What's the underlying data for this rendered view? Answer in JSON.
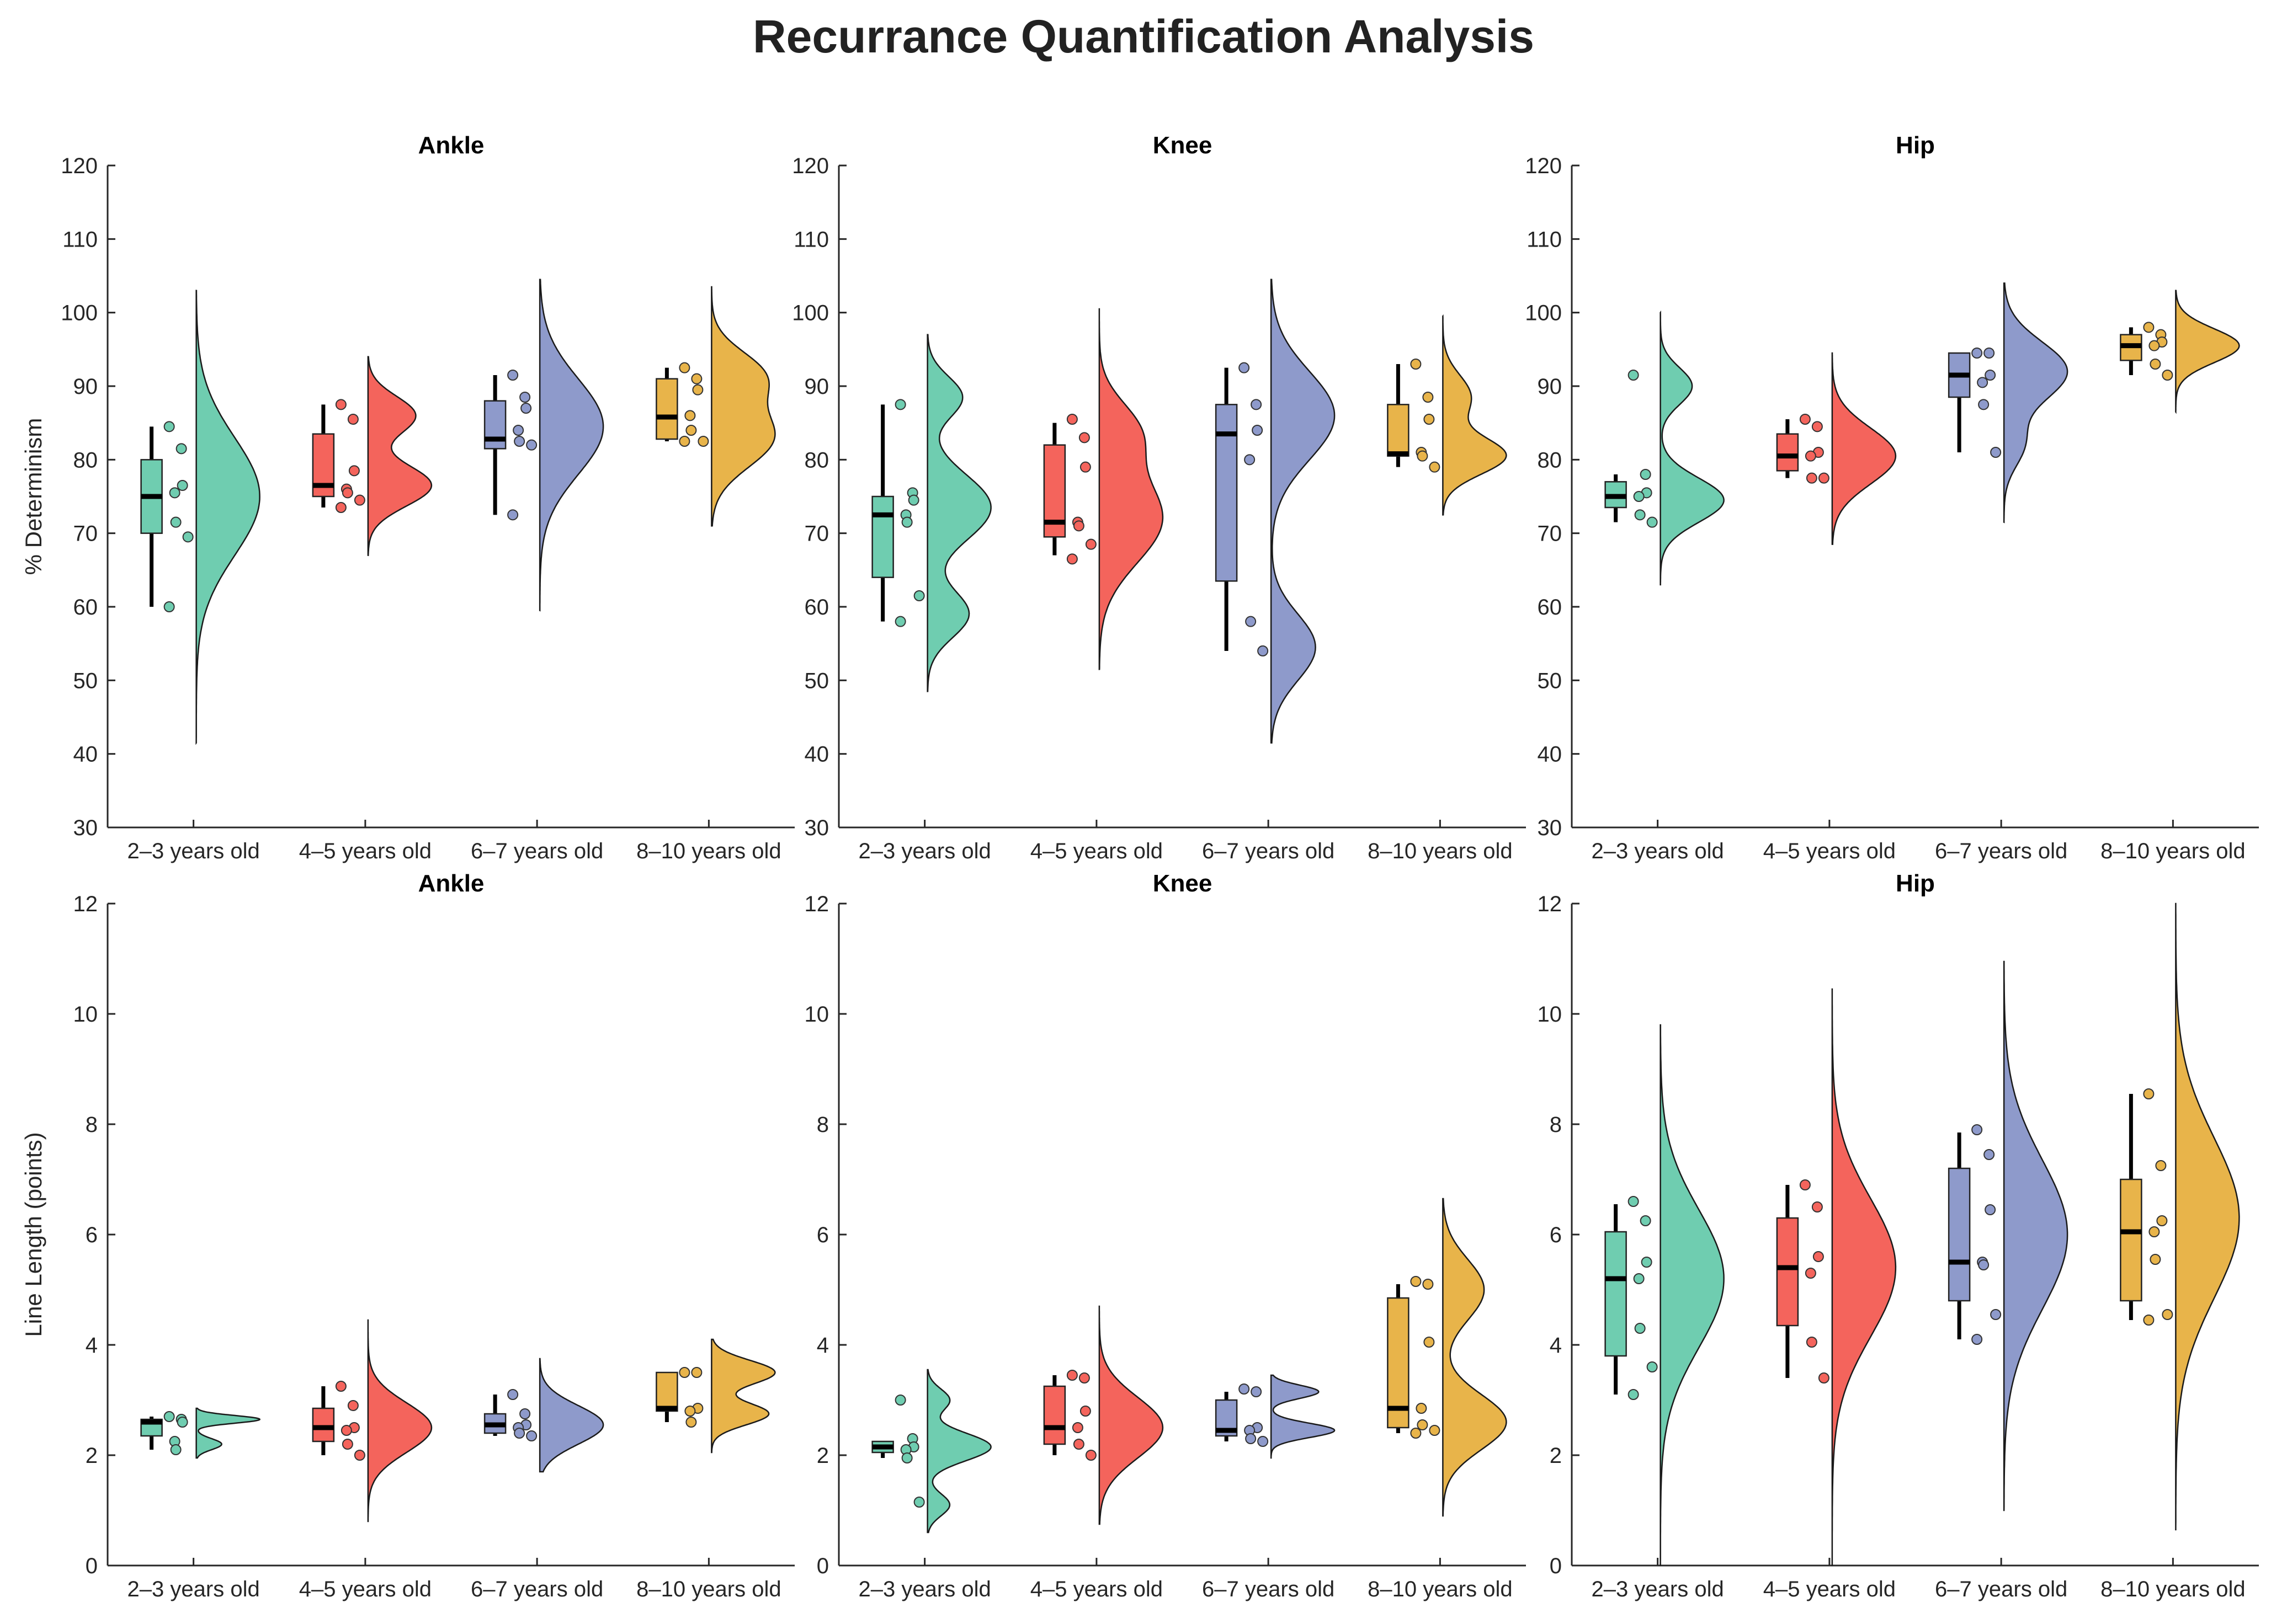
{
  "title": "Recurrance Quantification Analysis",
  "colors": {
    "2-3": "#6fcdb0",
    "4-5": "#f4645c",
    "6-7": "#8e9acb",
    "8-10": "#e8b44a",
    "axis": "#262626"
  },
  "chart_data": [
    {
      "type": "raincloud",
      "title": "Ankle",
      "ylabel": "% Determinism",
      "ylim": [
        30,
        120
      ],
      "yticks": [
        30,
        40,
        50,
        60,
        70,
        80,
        90,
        100,
        110,
        120
      ],
      "categories": [
        "2–3 years old",
        "4–5 years old",
        "6–7 years old",
        "8–10 years old"
      ],
      "box": [
        {
          "whisker_low": 60,
          "q1": 70,
          "median": 75,
          "q3": 80,
          "whisker_high": 84.5
        },
        {
          "whisker_low": 73.5,
          "q1": 75,
          "median": 76.5,
          "q3": 83.5,
          "whisker_high": 87.5
        },
        {
          "whisker_low": 72.5,
          "q1": 81.5,
          "median": 82.8,
          "q3": 88,
          "whisker_high": 91.5
        },
        {
          "whisker_low": 82.5,
          "q1": 82.8,
          "median": 85.8,
          "q3": 91,
          "whisker_high": 92.5
        }
      ],
      "points": [
        [
          84.5,
          81.5,
          76.5,
          75.5,
          71.5,
          69.5,
          60
        ],
        [
          87.5,
          85.5,
          78.5,
          76,
          75.5,
          74.5,
          73.5
        ],
        [
          91.5,
          88.5,
          87,
          84,
          82.5,
          82,
          72.5
        ],
        [
          92.5,
          91,
          89.5,
          86,
          84,
          82.5,
          82.5
        ]
      ],
      "density": [
        {
          "min": 41.5,
          "max": 103,
          "peaks": [
            {
              "mu": 75,
              "sd": 8,
              "w": 1
            }
          ]
        },
        {
          "min": 67,
          "max": 94,
          "peaks": [
            {
              "mu": 76.5,
              "sd": 2.8,
              "w": 1
            },
            {
              "mu": 86,
              "sd": 2.6,
              "w": 0.75
            }
          ]
        },
        {
          "min": 59.5,
          "max": 104.5,
          "peaks": [
            {
              "mu": 84.5,
              "sd": 6.5,
              "w": 1
            }
          ]
        },
        {
          "min": 71,
          "max": 103.5,
          "peaks": [
            {
              "mu": 83,
              "sd": 4,
              "w": 1
            },
            {
              "mu": 91.5,
              "sd": 3.3,
              "w": 0.8
            }
          ]
        }
      ]
    },
    {
      "type": "raincloud",
      "title": "Knee",
      "ylabel": "",
      "ylim": [
        30,
        120
      ],
      "yticks": [
        30,
        40,
        50,
        60,
        70,
        80,
        90,
        100,
        110,
        120
      ],
      "categories": [
        "2–3 years old",
        "4–5 years old",
        "6–7 years old",
        "8–10 years old"
      ],
      "box": [
        {
          "whisker_low": 58,
          "q1": 64,
          "median": 72.5,
          "q3": 75,
          "whisker_high": 87.5
        },
        {
          "whisker_low": 67,
          "q1": 69.5,
          "median": 71.5,
          "q3": 82,
          "whisker_high": 85
        },
        {
          "whisker_low": 54,
          "q1": 63.5,
          "median": 83.5,
          "q3": 87.5,
          "whisker_high": 92.5
        },
        {
          "whisker_low": 79,
          "q1": 80.5,
          "median": 80.8,
          "q3": 87.5,
          "whisker_high": 93
        }
      ],
      "points": [
        [
          87.5,
          75.5,
          74.5,
          72.5,
          71.5,
          61.5,
          58
        ],
        [
          85.5,
          83,
          79,
          71.5,
          71,
          68.5,
          66.5
        ],
        [
          92.5,
          87.5,
          84,
          80,
          58,
          54
        ],
        [
          93,
          88.5,
          85.5,
          81,
          80.5,
          79
        ]
      ],
      "density": [
        {
          "min": 48.5,
          "max": 97,
          "peaks": [
            {
              "mu": 59,
              "sd": 3.2,
              "w": 0.65
            },
            {
              "mu": 73.5,
              "sd": 4.5,
              "w": 1
            },
            {
              "mu": 88.5,
              "sd": 2.8,
              "w": 0.55
            }
          ]
        },
        {
          "min": 51.5,
          "max": 100.5,
          "peaks": [
            {
              "mu": 72,
              "sd": 6,
              "w": 1
            },
            {
              "mu": 84,
              "sd": 4,
              "w": 0.55
            }
          ]
        },
        {
          "min": 41.5,
          "max": 104.5,
          "peaks": [
            {
              "mu": 54.5,
              "sd": 4.5,
              "w": 0.7
            },
            {
              "mu": 86,
              "sd": 6,
              "w": 1
            }
          ]
        },
        {
          "min": 72.5,
          "max": 99.5,
          "peaks": [
            {
              "mu": 80.5,
              "sd": 2.5,
              "w": 1
            },
            {
              "mu": 88.5,
              "sd": 3,
              "w": 0.45
            }
          ]
        }
      ]
    },
    {
      "type": "raincloud",
      "title": "Hip",
      "ylabel": "",
      "ylim": [
        30,
        120
      ],
      "yticks": [
        30,
        40,
        50,
        60,
        70,
        80,
        90,
        100,
        110,
        120
      ],
      "categories": [
        "2–3 years old",
        "4–5 years old",
        "6–7 years old",
        "8–10 years old"
      ],
      "box": [
        {
          "whisker_low": 71.5,
          "q1": 73.5,
          "median": 75,
          "q3": 77,
          "whisker_high": 78
        },
        {
          "whisker_low": 77.5,
          "q1": 78.5,
          "median": 80.5,
          "q3": 83.5,
          "whisker_high": 85.5
        },
        {
          "whisker_low": 81,
          "q1": 88.5,
          "median": 91.5,
          "q3": 94.5,
          "whisker_high": 94.5
        },
        {
          "whisker_low": 91.5,
          "q1": 93.5,
          "median": 95.5,
          "q3": 97,
          "whisker_high": 98
        }
      ],
      "points": [
        [
          91.5,
          78,
          75.5,
          75,
          72.5,
          71.5
        ],
        [
          85.5,
          84.5,
          81,
          80.5,
          77.5,
          77.5
        ],
        [
          94.5,
          94.5,
          91.5,
          90.5,
          87.5,
          81
        ],
        [
          98,
          97,
          96,
          95.5,
          93,
          91.5
        ]
      ],
      "density": [
        {
          "min": 63,
          "max": 100,
          "peaks": [
            {
              "mu": 74.5,
              "sd": 3,
              "w": 1
            },
            {
              "mu": 90,
              "sd": 2.5,
              "w": 0.5
            }
          ]
        },
        {
          "min": 68.5,
          "max": 94.5,
          "peaks": [
            {
              "mu": 80.5,
              "sd": 3.8,
              "w": 1
            }
          ]
        },
        {
          "min": 71.5,
          "max": 104,
          "peaks": [
            {
              "mu": 92,
              "sd": 4,
              "w": 1
            },
            {
              "mu": 82,
              "sd": 3,
              "w": 0.3
            }
          ]
        },
        {
          "min": 86.5,
          "max": 103,
          "peaks": [
            {
              "mu": 95.5,
              "sd": 2.3,
              "w": 1
            }
          ]
        }
      ]
    },
    {
      "type": "raincloud",
      "title": "Ankle",
      "ylabel": "Line Length (points)",
      "ylim": [
        0,
        12
      ],
      "yticks": [
        0,
        2,
        4,
        6,
        8,
        10,
        12
      ],
      "categories": [
        "2–3 years old",
        "4–5 years old",
        "6–7 years old",
        "8–10 years old"
      ],
      "box": [
        {
          "whisker_low": 2.1,
          "q1": 2.35,
          "median": 2.6,
          "q3": 2.65,
          "whisker_high": 2.7
        },
        {
          "whisker_low": 2.0,
          "q1": 2.25,
          "median": 2.5,
          "q3": 2.85,
          "whisker_high": 3.25
        },
        {
          "whisker_low": 2.35,
          "q1": 2.4,
          "median": 2.55,
          "q3": 2.75,
          "whisker_high": 3.1
        },
        {
          "whisker_low": 2.6,
          "q1": 2.8,
          "median": 2.85,
          "q3": 3.5,
          "whisker_high": 3.5
        }
      ],
      "points": [
        [
          2.7,
          2.65,
          2.6,
          2.25,
          2.1
        ],
        [
          3.25,
          2.9,
          2.5,
          2.45,
          2.2,
          2.0
        ],
        [
          3.1,
          2.75,
          2.55,
          2.5,
          2.4,
          2.35
        ],
        [
          3.5,
          3.5,
          2.85,
          2.8,
          2.6
        ]
      ],
      "density": [
        {
          "min": 1.95,
          "max": 2.85,
          "peaks": [
            {
              "mu": 2.65,
              "sd": 0.07,
              "w": 1
            },
            {
              "mu": 2.2,
              "sd": 0.1,
              "w": 0.4
            }
          ]
        },
        {
          "min": 0.8,
          "max": 4.45,
          "peaks": [
            {
              "mu": 2.5,
              "sd": 0.45,
              "w": 1
            }
          ]
        },
        {
          "min": 1.7,
          "max": 3.75,
          "peaks": [
            {
              "mu": 2.55,
              "sd": 0.35,
              "w": 1
            }
          ]
        },
        {
          "min": 2.05,
          "max": 4.1,
          "peaks": [
            {
              "mu": 2.75,
              "sd": 0.2,
              "w": 0.9
            },
            {
              "mu": 3.5,
              "sd": 0.22,
              "w": 1
            }
          ]
        }
      ]
    },
    {
      "type": "raincloud",
      "title": "Knee",
      "ylabel": "",
      "ylim": [
        0,
        12
      ],
      "yticks": [
        0,
        2,
        4,
        6,
        8,
        10,
        12
      ],
      "categories": [
        "2–3 years old",
        "4–5 years old",
        "6–7 years old",
        "8–10 years old"
      ],
      "box": [
        {
          "whisker_low": 1.95,
          "q1": 2.05,
          "median": 2.15,
          "q3": 2.25,
          "whisker_high": 2.25
        },
        {
          "whisker_low": 2.0,
          "q1": 2.2,
          "median": 2.5,
          "q3": 3.25,
          "whisker_high": 3.45
        },
        {
          "whisker_low": 2.25,
          "q1": 2.35,
          "median": 2.45,
          "q3": 3.0,
          "whisker_high": 3.15
        },
        {
          "whisker_low": 2.4,
          "q1": 2.5,
          "median": 2.85,
          "q3": 4.85,
          "whisker_high": 5.1
        }
      ],
      "points": [
        [
          3.0,
          2.3,
          2.15,
          2.1,
          1.95,
          1.15
        ],
        [
          3.45,
          3.4,
          2.8,
          2.5,
          2.2,
          2.0
        ],
        [
          3.2,
          3.15,
          2.5,
          2.45,
          2.3,
          2.25
        ],
        [
          5.15,
          5.1,
          4.05,
          2.85,
          2.55,
          2.45,
          2.4
        ]
      ],
      "density": [
        {
          "min": 0.6,
          "max": 3.55,
          "peaks": [
            {
              "mu": 2.15,
              "sd": 0.25,
              "w": 1
            },
            {
              "mu": 1.1,
              "sd": 0.2,
              "w": 0.35
            },
            {
              "mu": 3.0,
              "sd": 0.2,
              "w": 0.35
            }
          ]
        },
        {
          "min": 0.75,
          "max": 4.7,
          "peaks": [
            {
              "mu": 2.5,
              "sd": 0.55,
              "w": 1
            }
          ]
        },
        {
          "min": 1.95,
          "max": 3.45,
          "peaks": [
            {
              "mu": 2.45,
              "sd": 0.13,
              "w": 1
            },
            {
              "mu": 3.15,
              "sd": 0.12,
              "w": 0.75
            }
          ]
        },
        {
          "min": 0.9,
          "max": 6.65,
          "peaks": [
            {
              "mu": 2.6,
              "sd": 0.5,
              "w": 1
            },
            {
              "mu": 5.0,
              "sd": 0.55,
              "w": 0.65
            }
          ]
        }
      ]
    },
    {
      "type": "raincloud",
      "title": "Hip",
      "ylabel": "",
      "ylim": [
        0,
        12
      ],
      "yticks": [
        0,
        2,
        4,
        6,
        8,
        10,
        12
      ],
      "categories": [
        "2–3 years old",
        "4–5 years old",
        "6–7 years old",
        "8–10 years old"
      ],
      "box": [
        {
          "whisker_low": 3.1,
          "q1": 3.8,
          "median": 5.2,
          "q3": 6.05,
          "whisker_high": 6.55
        },
        {
          "whisker_low": 3.4,
          "q1": 4.35,
          "median": 5.4,
          "q3": 6.3,
          "whisker_high": 6.9
        },
        {
          "whisker_low": 4.1,
          "q1": 4.8,
          "median": 5.5,
          "q3": 7.2,
          "whisker_high": 7.85
        },
        {
          "whisker_low": 4.45,
          "q1": 4.8,
          "median": 6.05,
          "q3": 7.0,
          "whisker_high": 8.55
        }
      ],
      "points": [
        [
          6.6,
          6.25,
          5.5,
          5.2,
          4.3,
          3.6,
          3.1
        ],
        [
          6.9,
          6.5,
          5.6,
          5.3,
          4.05,
          3.4
        ],
        [
          7.9,
          7.45,
          6.45,
          5.5,
          5.45,
          4.55,
          4.1
        ],
        [
          8.55,
          7.25,
          6.25,
          6.05,
          5.55,
          4.55,
          4.45
        ]
      ],
      "density": [
        {
          "min": 0,
          "max": 9.8,
          "peaks": [
            {
              "mu": 5.2,
              "sd": 1.25,
              "w": 1
            }
          ]
        },
        {
          "min": 0,
          "max": 10.45,
          "peaks": [
            {
              "mu": 5.4,
              "sd": 1.25,
              "w": 1
            }
          ]
        },
        {
          "min": 1.0,
          "max": 10.95,
          "peaks": [
            {
              "mu": 6.0,
              "sd": 1.35,
              "w": 1
            }
          ]
        },
        {
          "min": 0.65,
          "max": 12.0,
          "peaks": [
            {
              "mu": 6.3,
              "sd": 1.45,
              "w": 1
            }
          ]
        }
      ]
    }
  ]
}
